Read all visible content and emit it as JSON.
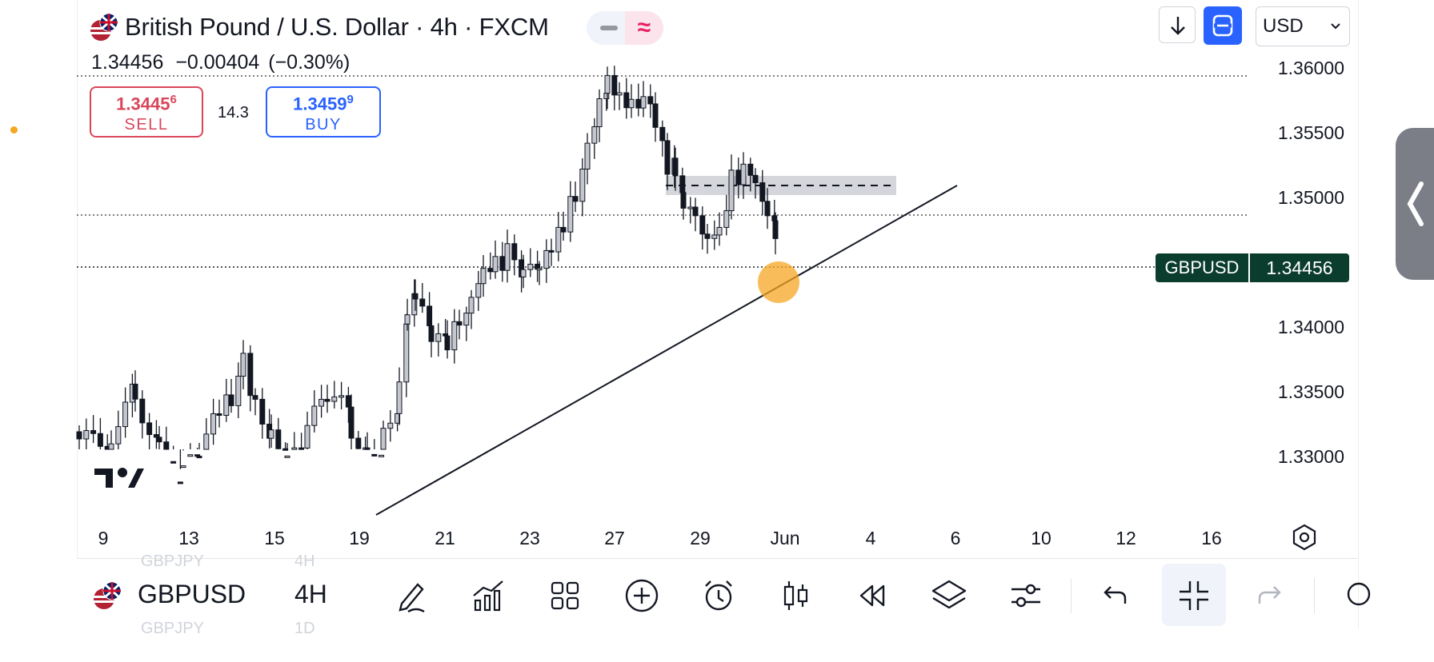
{
  "header": {
    "title": "British Pound / U.S. Dollar · 4h · FXCM",
    "flag_icon": "gb-us-flag-icon"
  },
  "quote": {
    "last": "1.34456",
    "change": "−0.00404",
    "change_pct": "(−0.30%)"
  },
  "trade": {
    "sell_price_main": "1.3445",
    "sell_price_sup": "6",
    "sell_label": "SELL",
    "spread": "14.3",
    "buy_price_main": "1.3459",
    "buy_price_sup": "9",
    "buy_label": "BUY"
  },
  "top_right": {
    "currency": "USD"
  },
  "price_axis": {
    "labels": [
      "1.36000",
      "1.35500",
      "1.35000",
      "1.34000",
      "1.33500",
      "1.33000"
    ]
  },
  "current_price": {
    "symbol": "GBPUSD",
    "price": "1.34456"
  },
  "time_axis": {
    "labels": [
      "9",
      "13",
      "15",
      "19",
      "21",
      "23",
      "27",
      "29",
      "Jun",
      "4",
      "6",
      "10",
      "12",
      "16"
    ]
  },
  "toolbar": {
    "symbol": "GBPUSD",
    "interval": "4H",
    "ghost_prev_symbol": "GBPJPY",
    "ghost_prev_interval": "4H",
    "ghost_next_symbol": "GBPJPY",
    "ghost_next_interval": "1D"
  },
  "colors": {
    "buy": "#2962ff",
    "sell": "#d9465a",
    "price_tag": "#0b3d2e",
    "highlight": "#f5a623"
  },
  "icons": [
    "pen-icon",
    "indicators-icon",
    "templates-icon",
    "add-icon",
    "alert-icon",
    "bar-type-icon",
    "replay-icon",
    "layers-icon",
    "settings-sliders-icon",
    "undo-icon",
    "collapse-icon",
    "redo-icon"
  ]
}
